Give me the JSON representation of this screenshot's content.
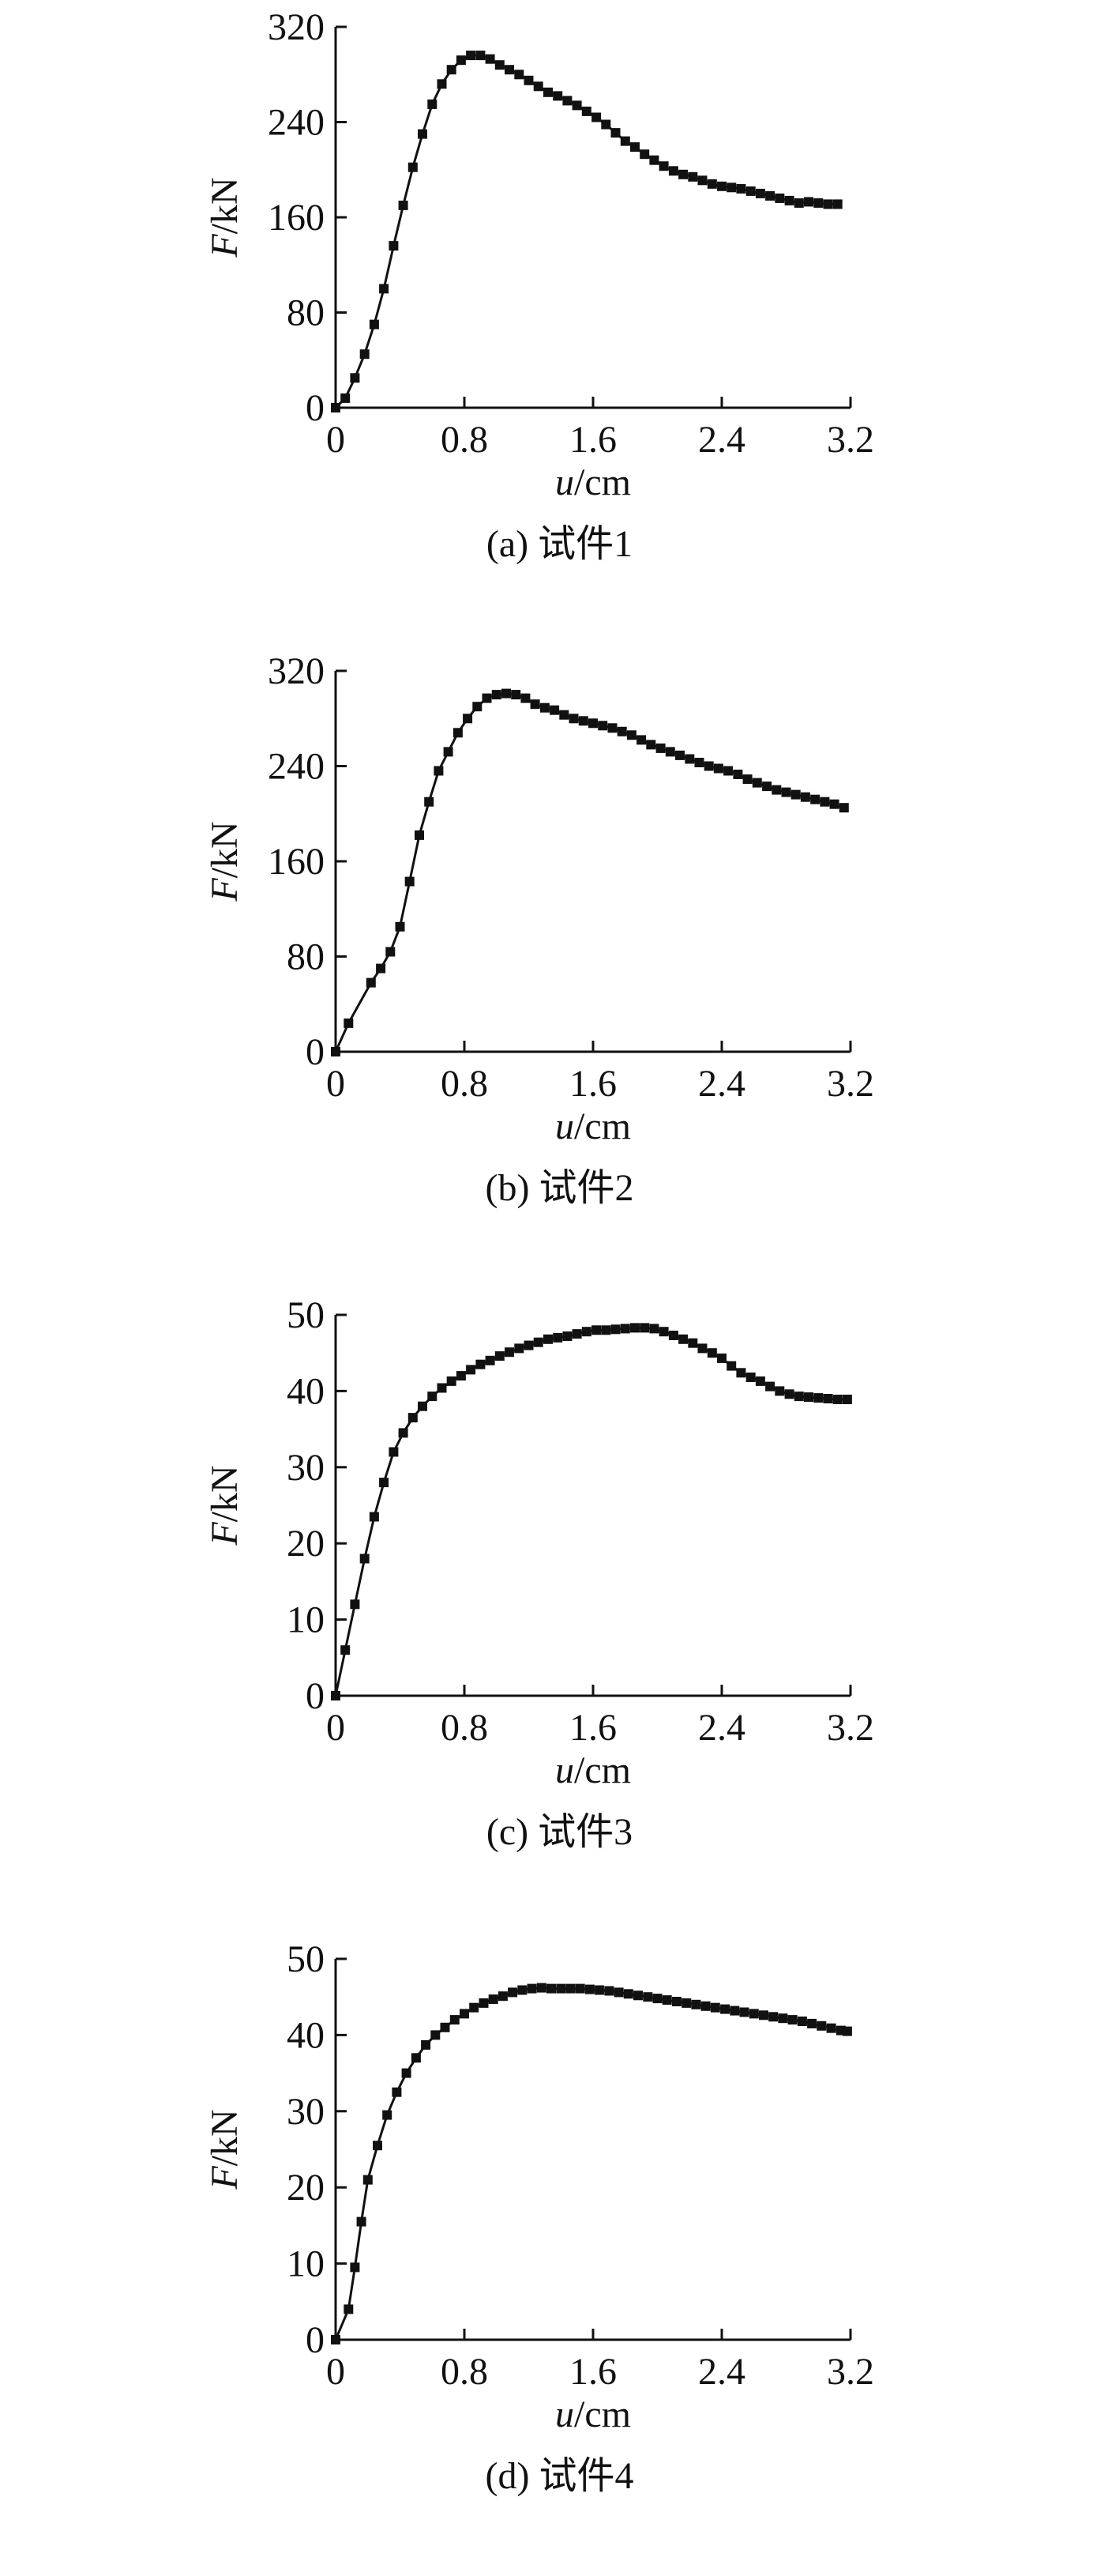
{
  "chart_data": [
    {
      "type": "line",
      "caption": "(a) 试件1",
      "xlabel_var": "u",
      "xlabel_unit": "/cm",
      "ylabel_var": "F",
      "ylabel_unit": "/kN",
      "xlim": [
        0,
        3.2
      ],
      "ylim": [
        0,
        320
      ],
      "xticks": [
        "0",
        "0.8",
        "1.6",
        "2.4",
        "3.2"
      ],
      "yticks": [
        "0",
        "80",
        "160",
        "240",
        "320"
      ],
      "grid": false,
      "marker": "square",
      "color": "#111111",
      "x": [
        0.0,
        0.06,
        0.12,
        0.18,
        0.24,
        0.3,
        0.36,
        0.42,
        0.48,
        0.54,
        0.6,
        0.66,
        0.72,
        0.78,
        0.84,
        0.9,
        0.96,
        1.02,
        1.08,
        1.14,
        1.2,
        1.26,
        1.32,
        1.38,
        1.44,
        1.5,
        1.56,
        1.62,
        1.68,
        1.74,
        1.8,
        1.86,
        1.92,
        1.98,
        2.04,
        2.1,
        2.16,
        2.22,
        2.28,
        2.34,
        2.4,
        2.46,
        2.52,
        2.58,
        2.64,
        2.7,
        2.76,
        2.82,
        2.88,
        2.94,
        3.0,
        3.06,
        3.12
      ],
      "y": [
        0,
        8,
        25,
        45,
        70,
        100,
        136,
        170,
        202,
        230,
        255,
        272,
        284,
        292,
        296,
        296,
        293,
        288,
        284,
        280,
        275,
        270,
        265,
        262,
        258,
        254,
        249,
        244,
        238,
        231,
        224,
        219,
        213,
        208,
        203,
        199,
        196,
        194,
        191,
        188,
        186,
        185,
        184,
        182,
        180,
        178,
        176,
        174,
        172,
        173,
        172,
        171,
        171
      ]
    },
    {
      "type": "line",
      "caption": "(b) 试件2",
      "xlabel_var": "u",
      "xlabel_unit": "/cm",
      "ylabel_var": "F",
      "ylabel_unit": "/kN",
      "xlim": [
        0,
        3.2
      ],
      "ylim": [
        0,
        320
      ],
      "xticks": [
        "0",
        "0.8",
        "1.6",
        "2.4",
        "3.2"
      ],
      "yticks": [
        "0",
        "80",
        "160",
        "240",
        "320"
      ],
      "grid": false,
      "marker": "square",
      "color": "#111111",
      "x": [
        0.0,
        0.08,
        0.22,
        0.28,
        0.34,
        0.4,
        0.46,
        0.52,
        0.58,
        0.64,
        0.7,
        0.76,
        0.82,
        0.88,
        0.94,
        1.0,
        1.06,
        1.12,
        1.18,
        1.24,
        1.3,
        1.36,
        1.42,
        1.48,
        1.54,
        1.6,
        1.66,
        1.72,
        1.78,
        1.84,
        1.9,
        1.96,
        2.02,
        2.08,
        2.14,
        2.2,
        2.26,
        2.32,
        2.38,
        2.44,
        2.5,
        2.56,
        2.62,
        2.68,
        2.74,
        2.8,
        2.86,
        2.92,
        2.98,
        3.04,
        3.1,
        3.16
      ],
      "y": [
        0,
        24,
        58,
        70,
        84,
        105,
        143,
        182,
        210,
        236,
        252,
        268,
        280,
        290,
        297,
        300,
        301,
        300,
        297,
        292,
        289,
        287,
        283,
        280,
        278,
        276,
        274,
        272,
        269,
        266,
        262,
        258,
        255,
        252,
        249,
        246,
        243,
        240,
        238,
        236,
        233,
        229,
        226,
        223,
        220,
        218,
        216,
        214,
        212,
        210,
        208,
        205
      ]
    },
    {
      "type": "line",
      "caption": "(c) 试件3",
      "xlabel_var": "u",
      "xlabel_unit": "/cm",
      "ylabel_var": "F",
      "ylabel_unit": "/kN",
      "xlim": [
        0,
        3.2
      ],
      "ylim": [
        0,
        50
      ],
      "xticks": [
        "0",
        "0.8",
        "1.6",
        "2.4",
        "3.2"
      ],
      "yticks": [
        "0",
        "10",
        "20",
        "30",
        "40",
        "50"
      ],
      "grid": false,
      "marker": "square",
      "color": "#111111",
      "x": [
        0.0,
        0.06,
        0.12,
        0.18,
        0.24,
        0.3,
        0.36,
        0.42,
        0.48,
        0.54,
        0.6,
        0.66,
        0.72,
        0.78,
        0.84,
        0.9,
        0.96,
        1.02,
        1.08,
        1.14,
        1.2,
        1.26,
        1.32,
        1.38,
        1.44,
        1.5,
        1.56,
        1.62,
        1.68,
        1.74,
        1.8,
        1.86,
        1.92,
        1.98,
        2.04,
        2.1,
        2.16,
        2.22,
        2.28,
        2.34,
        2.4,
        2.46,
        2.52,
        2.58,
        2.64,
        2.7,
        2.76,
        2.82,
        2.88,
        2.94,
        3.0,
        3.06,
        3.12,
        3.18
      ],
      "y": [
        0,
        6,
        12,
        18,
        23.5,
        28,
        32,
        34.5,
        36.5,
        38,
        39.3,
        40.4,
        41.3,
        42,
        42.8,
        43.5,
        44,
        44.6,
        45.1,
        45.6,
        46,
        46.4,
        46.8,
        47,
        47.2,
        47.5,
        47.8,
        48,
        48,
        48.1,
        48.2,
        48.3,
        48.3,
        48.2,
        47.8,
        47.3,
        46.8,
        46.3,
        45.6,
        45,
        44.3,
        43.3,
        42.4,
        41.8,
        41.3,
        40.6,
        40,
        39.6,
        39.3,
        39.2,
        39.1,
        39,
        38.9,
        38.9
      ]
    },
    {
      "type": "line",
      "caption": "(d) 试件4",
      "xlabel_var": "u",
      "xlabel_unit": "/cm",
      "ylabel_var": "F",
      "ylabel_unit": "/kN",
      "xlim": [
        0,
        3.2
      ],
      "ylim": [
        0,
        50
      ],
      "xticks": [
        "0",
        "0.8",
        "1.6",
        "2.4",
        "3.2"
      ],
      "yticks": [
        "0",
        "10",
        "20",
        "30",
        "40",
        "50"
      ],
      "grid": false,
      "marker": "square",
      "color": "#111111",
      "x": [
        0.0,
        0.08,
        0.12,
        0.16,
        0.2,
        0.26,
        0.32,
        0.38,
        0.44,
        0.5,
        0.56,
        0.62,
        0.68,
        0.74,
        0.8,
        0.86,
        0.92,
        0.98,
        1.04,
        1.1,
        1.16,
        1.22,
        1.28,
        1.34,
        1.4,
        1.46,
        1.52,
        1.58,
        1.64,
        1.7,
        1.76,
        1.82,
        1.88,
        1.94,
        2.0,
        2.06,
        2.12,
        2.18,
        2.24,
        2.3,
        2.36,
        2.42,
        2.48,
        2.54,
        2.6,
        2.66,
        2.72,
        2.78,
        2.84,
        2.9,
        2.96,
        3.02,
        3.08,
        3.14,
        3.18
      ],
      "y": [
        0,
        4,
        9.5,
        15.5,
        21,
        25.5,
        29.5,
        32.5,
        35,
        37,
        38.7,
        40,
        41,
        42,
        42.8,
        43.6,
        44.2,
        44.7,
        45.1,
        45.6,
        45.9,
        46.1,
        46.2,
        46.1,
        46.1,
        46.1,
        46.1,
        46,
        45.9,
        45.8,
        45.6,
        45.4,
        45.2,
        45,
        44.8,
        44.6,
        44.4,
        44.2,
        44,
        43.8,
        43.6,
        43.4,
        43.2,
        43,
        42.8,
        42.6,
        42.4,
        42.2,
        42,
        41.8,
        41.5,
        41.2,
        40.9,
        40.6,
        40.5
      ]
    }
  ]
}
